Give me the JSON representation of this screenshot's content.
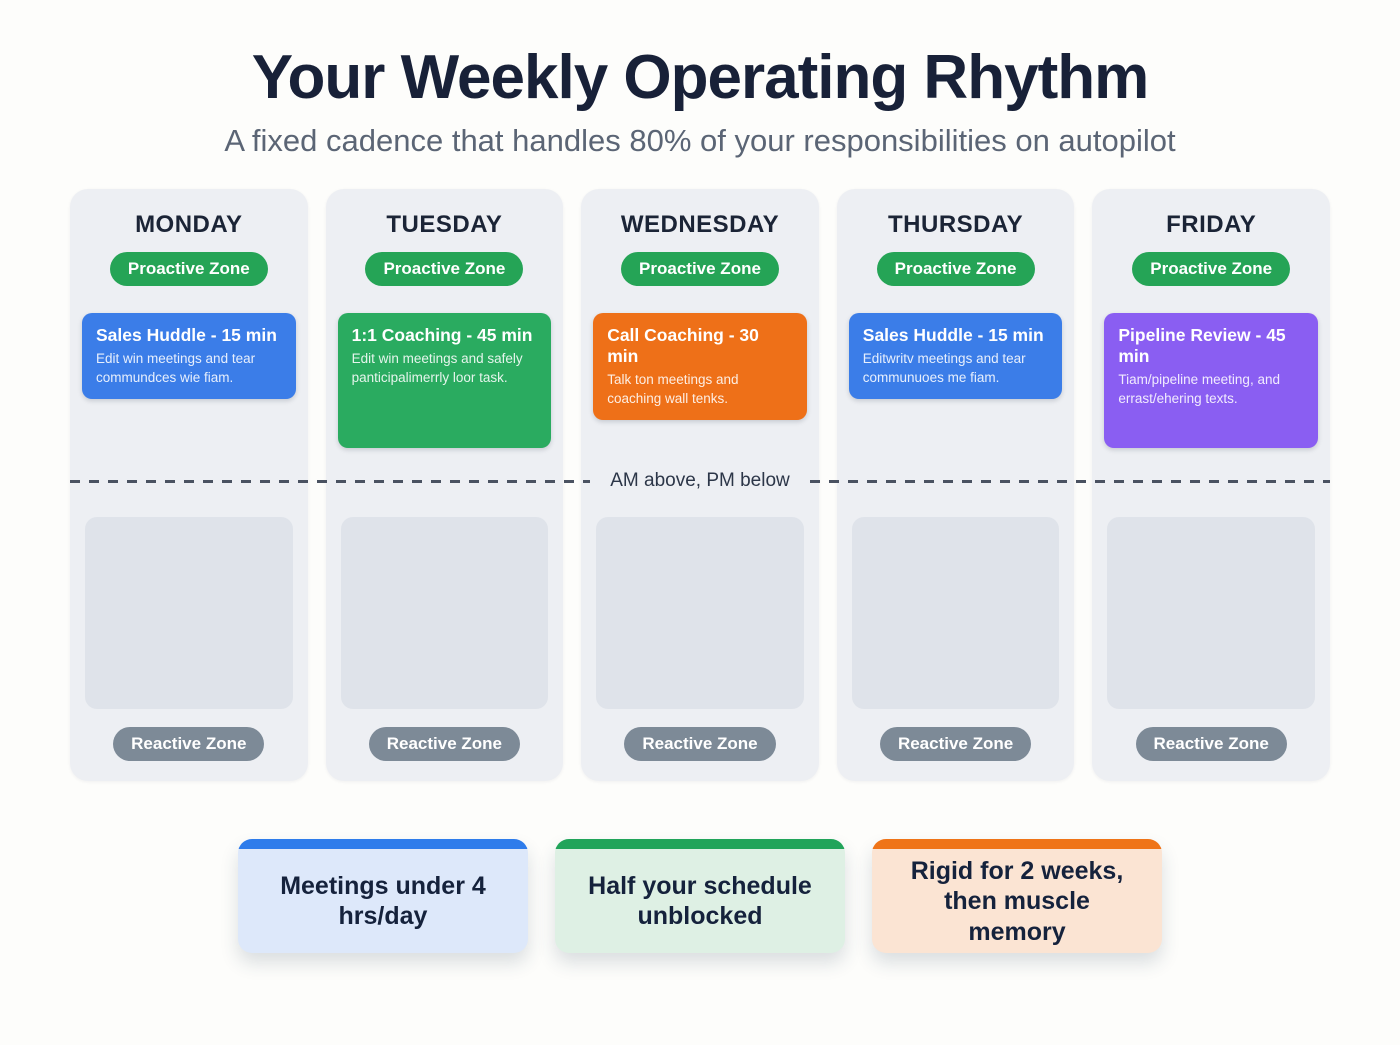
{
  "page": {
    "title": "Your Weekly Operating Rhythm",
    "subtitle": "A fixed cadence that handles 80% of your responsibilities on autopilot",
    "divider_label": "AM above, PM below"
  },
  "zones": {
    "proactive_label": "Proactive Zone",
    "reactive_label": "Reactive Zone",
    "proactive_color": "#25a456",
    "reactive_color": "#7d8a97"
  },
  "days": [
    {
      "name": "MONDAY",
      "event": {
        "title": "Sales Huddle - 15 min",
        "description": "Edit win meetings and tear commundces wie fiam.",
        "color": "#3b7de8"
      }
    },
    {
      "name": "TUESDAY",
      "event": {
        "title": "1:1 Coaching - 45 min",
        "description": "Edit win meetings and safely panticipalimerrly loor task.",
        "color": "#2aab60"
      }
    },
    {
      "name": "WEDNESDAY",
      "event": {
        "title": "Call Coaching - 30 min",
        "description": "Talk ton meetings and coaching wall tenks.",
        "color": "#ee7018"
      }
    },
    {
      "name": "THURSDAY",
      "event": {
        "title": "Sales Huddle - 15 min",
        "description": "Editwritv meetings and tear communuoes me fiam.",
        "color": "#3b7de8"
      }
    },
    {
      "name": "FRIDAY",
      "event": {
        "title": "Pipeline Review - 45 min",
        "description": "Tiam/pipeline meeting, and errast/ehering texts.",
        "color": "#8a5ef2"
      }
    }
  ],
  "takeaways": [
    {
      "label": "Meetings under 4 hrs/day",
      "accent": "#2e7ceb",
      "bg": "#dde8fa"
    },
    {
      "label": "Half your schedule unblocked",
      "accent": "#21a45a",
      "bg": "#def0e4"
    },
    {
      "label": "Rigid for 2 weeks, then muscle memory",
      "accent": "#ef7418",
      "bg": "#fbe4d3"
    }
  ]
}
